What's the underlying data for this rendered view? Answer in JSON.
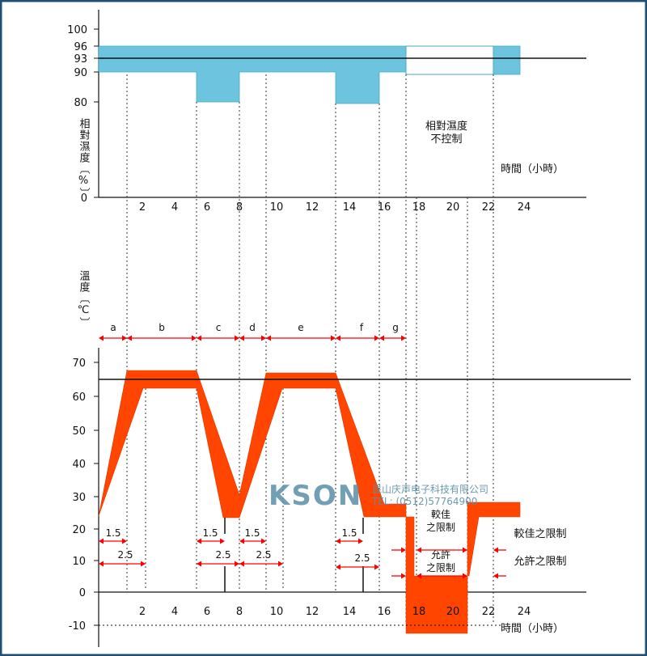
{
  "colors": {
    "border": "#1f4e79",
    "humidity_band": "#6cc4de",
    "temperature_band": "#ff4500",
    "arrow": "#ff0000"
  },
  "humidity": {
    "ylabel": "相對濕度〔%〕",
    "yticks": [
      "100",
      "96",
      "93",
      "90",
      "80",
      "0"
    ],
    "xticks": [
      "2",
      "4",
      "6",
      "8",
      "10",
      "12",
      "14",
      "16",
      "18",
      "20",
      "22",
      "24"
    ],
    "xlabel": "時間（小時）",
    "uncontrolled_label_1": "相對濕度",
    "uncontrolled_label_2": "不控制"
  },
  "temperature": {
    "ylabel": "溫度〔℃〕",
    "yticks": [
      "70",
      "60",
      "50",
      "40",
      "30",
      "20",
      "10",
      "0",
      "-10"
    ],
    "xticks": [
      "2",
      "4",
      "6",
      "8",
      "10",
      "12",
      "14",
      "16",
      "18",
      "20",
      "22",
      "24"
    ],
    "xlabel": "時間（小時）",
    "segments": [
      "a",
      "b",
      "c",
      "d",
      "e",
      "f",
      "g"
    ],
    "rate_labels": {
      "r1": "1.5",
      "r2": "2.5"
    },
    "better_limit_1": "較佳",
    "better_limit_2": "之限制",
    "allowed_limit_1": "允許",
    "allowed_limit_2": "之限制",
    "legend_better": "較佳之限制",
    "legend_allowed": "允許之限制"
  },
  "watermark": {
    "logo": "KSON",
    "company": "昆山庆声电子科技有限公司",
    "tel": "TEL: (0512)57764900"
  },
  "chart_data": {
    "type": "area",
    "humidity_profile": {
      "x_hours": [
        0,
        5.5,
        5.5,
        8,
        8,
        13.5,
        13.5,
        16,
        16,
        17.5,
        22.5,
        24
      ],
      "lower_limit_pct": [
        90,
        90,
        80,
        80,
        90,
        90,
        80,
        80,
        90,
        90,
        90,
        90
      ],
      "upper_limit_pct": [
        96,
        96,
        96,
        96,
        96,
        96,
        96,
        96,
        96,
        96,
        96,
        96
      ],
      "setpoint_pct": 93,
      "uncontrolled_interval_hours": [
        17.5,
        22.5
      ]
    },
    "temperature_profile": {
      "setpoint_C": 65,
      "high_band_C": [
        63,
        68
      ],
      "low_band_C": [
        23,
        28
      ],
      "cold_band_C": [
        -12,
        -8
      ],
      "segment_labels": [
        "a",
        "b",
        "c",
        "d",
        "e",
        "f",
        "g"
      ]
    }
  }
}
